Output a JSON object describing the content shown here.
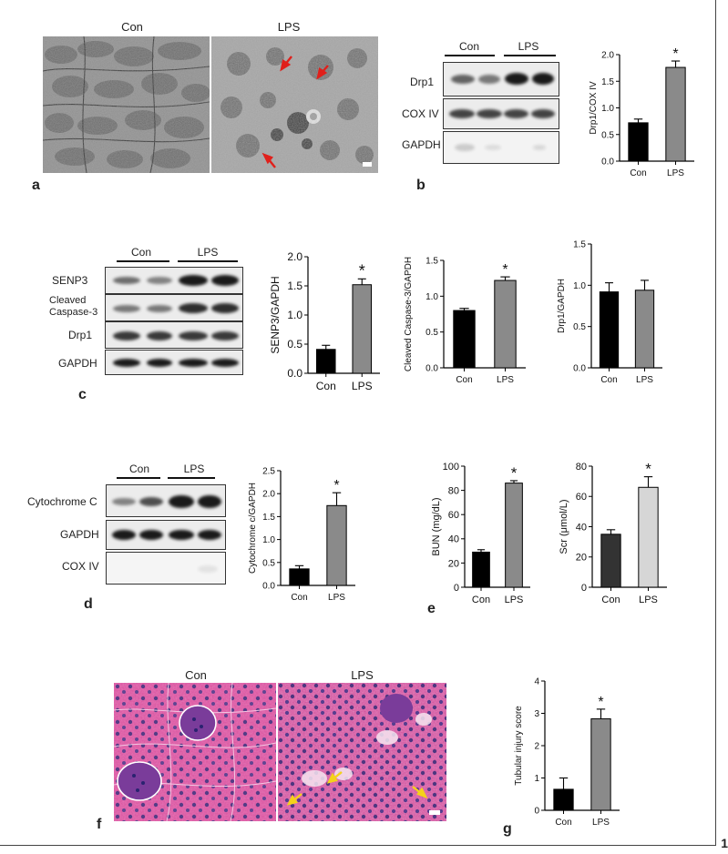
{
  "panels": {
    "a": {
      "letter": "a",
      "left_label": "Con",
      "right_label": "LPS"
    },
    "b": {
      "letter": "b",
      "groups": [
        "Con",
        "LPS"
      ],
      "rows": [
        "Drp1",
        "COX IV",
        "GAPDH"
      ]
    },
    "c": {
      "letter": "c",
      "groups": [
        "Con",
        "LPS"
      ],
      "rows": [
        "SENP3",
        "Cleaved Caspase-3",
        "Drp1",
        "GAPDH"
      ]
    },
    "d": {
      "letter": "d",
      "groups": [
        "Con",
        "LPS"
      ],
      "rows": [
        "Cytochrome C",
        "GAPDH",
        "COX IV"
      ]
    },
    "e": {
      "letter": "e"
    },
    "f": {
      "letter": "f",
      "left_label": "Con",
      "right_label": "LPS"
    },
    "g": {
      "letter": "g"
    }
  },
  "page_number": "1",
  "colors": {
    "con": "#000000",
    "lps": "#8a8a8a",
    "scr_con": "#333333",
    "scr_lps": "#d6d6d6",
    "arrow_red": "#e0201b",
    "arrow_yellow": "#f5d21a",
    "he_pink": "#d9509d"
  },
  "chart_data": [
    {
      "id": "b",
      "type": "bar",
      "categories": [
        "Con",
        "LPS"
      ],
      "values": [
        0.72,
        1.76
      ],
      "errors": [
        0.07,
        0.12
      ],
      "ylabel": "Drp1/COX IV",
      "ylim": [
        0,
        2.0
      ],
      "yticks": [
        "0.0",
        "0.5",
        "1.0",
        "1.5",
        "2.0"
      ],
      "star": "*",
      "colors": [
        "#000000",
        "#8a8a8a"
      ]
    },
    {
      "id": "c1",
      "type": "bar",
      "categories": [
        "Con",
        "LPS"
      ],
      "values": [
        0.41,
        1.52
      ],
      "errors": [
        0.07,
        0.1
      ],
      "ylabel": "SENP3/GAPDH",
      "ylim": [
        0,
        2.0
      ],
      "yticks": [
        "0.0",
        "0.5",
        "1.0",
        "1.5",
        "2.0"
      ],
      "star": "*",
      "colors": [
        "#000000",
        "#8a8a8a"
      ]
    },
    {
      "id": "c2",
      "type": "bar",
      "categories": [
        "Con",
        "LPS"
      ],
      "values": [
        0.8,
        1.22
      ],
      "errors": [
        0.03,
        0.05
      ],
      "ylabel": "Cleaved Caspase-3/GAPDH",
      "ylim": [
        0,
        1.5
      ],
      "yticks": [
        "0.0",
        "0.5",
        "1.0",
        "1.5"
      ],
      "star": "*",
      "colors": [
        "#000000",
        "#8a8a8a"
      ]
    },
    {
      "id": "c3",
      "type": "bar",
      "categories": [
        "Con",
        "LPS"
      ],
      "values": [
        0.92,
        0.94
      ],
      "errors": [
        0.11,
        0.12
      ],
      "ylabel": "Drp1/GAPDH",
      "ylim": [
        0,
        1.5
      ],
      "yticks": [
        "0.0",
        "0.5",
        "1.0",
        "1.5"
      ],
      "star": "",
      "colors": [
        "#000000",
        "#8a8a8a"
      ]
    },
    {
      "id": "d",
      "type": "bar",
      "categories": [
        "Con",
        "LPS"
      ],
      "values": [
        0.36,
        1.74
      ],
      "errors": [
        0.07,
        0.28
      ],
      "ylabel": "Cytochrome c/GAPDH",
      "ylim": [
        0,
        2.5
      ],
      "yticks": [
        "0.0",
        "0.5",
        "1.0",
        "1.5",
        "2.0",
        "2.5"
      ],
      "star": "*",
      "colors": [
        "#000000",
        "#8a8a8a"
      ]
    },
    {
      "id": "e1",
      "type": "bar",
      "categories": [
        "Con",
        "LPS"
      ],
      "values": [
        29,
        86
      ],
      "errors": [
        2,
        2
      ],
      "ylabel": "BUN (mg/dL)",
      "ylim": [
        0,
        100
      ],
      "yticks": [
        "0",
        "20",
        "40",
        "60",
        "80",
        "100"
      ],
      "star": "*",
      "colors": [
        "#000000",
        "#8a8a8a"
      ]
    },
    {
      "id": "e2",
      "type": "bar",
      "categories": [
        "Con",
        "LPS"
      ],
      "values": [
        35,
        66
      ],
      "errors": [
        3,
        7
      ],
      "ylabel": "Scr (μmol/L)",
      "ylim": [
        0,
        80
      ],
      "yticks": [
        "0",
        "20",
        "40",
        "60",
        "80"
      ],
      "star": "*",
      "colors": [
        "#333333",
        "#d6d6d6"
      ]
    },
    {
      "id": "g",
      "type": "bar",
      "categories": [
        "Con",
        "LPS"
      ],
      "values": [
        0.65,
        2.83
      ],
      "errors": [
        0.35,
        0.3
      ],
      "ylabel": "Tubular injury score",
      "ylim": [
        0,
        4
      ],
      "yticks": [
        "0",
        "1",
        "2",
        "3",
        "4"
      ],
      "star": "*",
      "colors": [
        "#000000",
        "#8a8a8a"
      ]
    }
  ]
}
